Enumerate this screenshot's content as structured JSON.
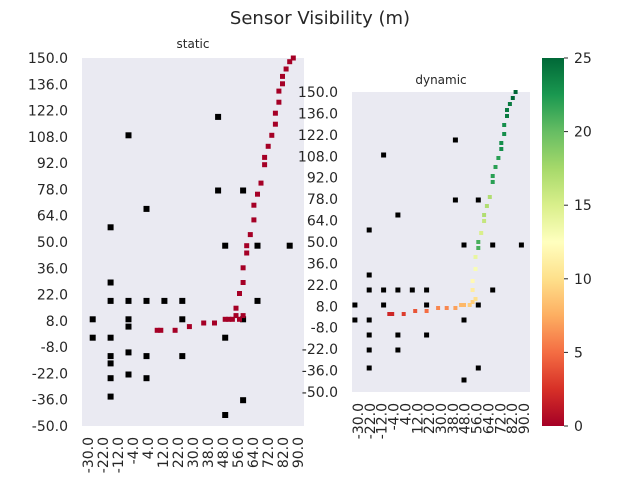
{
  "chart_data": {
    "type": "heatmap",
    "title": "Sensor Visibility (m)",
    "panels": [
      {
        "name": "static",
        "title": "static",
        "x_ticks": [
          "-30.0",
          "-22.0",
          "-12.0",
          "-4.0",
          "4.0",
          "12.0",
          "22.0",
          "30.0",
          "38.0",
          "48.0",
          "56.0",
          "64.0",
          "72.0",
          "82.0",
          "90.0"
        ],
        "y_ticks": [
          "150.0",
          "136.0",
          "122.0",
          "108.0",
          "92.0",
          "78.0",
          "64.0",
          "50.0",
          "36.0",
          "22.0",
          "8.0",
          "-8.0",
          "-22.0",
          "-36.0",
          "-50.0"
        ],
        "xlim": [
          -32,
          92
        ],
        "ylim": [
          -50,
          150
        ],
        "obstacles": [
          [
            -26,
            8
          ],
          [
            -26,
            -2
          ],
          [
            -16,
            -16
          ],
          [
            -6,
            4
          ],
          [
            -6,
            -10
          ],
          [
            -6,
            -22
          ],
          [
            -16,
            58
          ],
          [
            -16,
            28
          ],
          [
            -16,
            18
          ],
          [
            -16,
            -2
          ],
          [
            -16,
            -12
          ],
          [
            -16,
            -24
          ],
          [
            -16,
            -34
          ],
          [
            -6,
            108
          ],
          [
            -6,
            18
          ],
          [
            -6,
            8
          ],
          [
            4,
            68
          ],
          [
            4,
            18
          ],
          [
            4,
            -12
          ],
          [
            4,
            -24
          ],
          [
            14,
            18
          ],
          [
            24,
            18
          ],
          [
            24,
            8
          ],
          [
            24,
            -12
          ],
          [
            44,
            118
          ],
          [
            44,
            78
          ],
          [
            48,
            48
          ],
          [
            48,
            -2
          ],
          [
            48,
            -44
          ],
          [
            58,
            78
          ],
          [
            58,
            8
          ],
          [
            58,
            -36
          ],
          [
            66,
            48
          ],
          [
            66,
            18
          ],
          [
            84,
            48
          ]
        ],
        "trajectory": [
          [
            10,
            2,
            0
          ],
          [
            12,
            2,
            0
          ],
          [
            20,
            2,
            0
          ],
          [
            28,
            4,
            0
          ],
          [
            36,
            6,
            0
          ],
          [
            42,
            6,
            0
          ],
          [
            48,
            8,
            0
          ],
          [
            50,
            8,
            0
          ],
          [
            52,
            8,
            0
          ],
          [
            54,
            10,
            0
          ],
          [
            56,
            8,
            0
          ],
          [
            58,
            10,
            0
          ],
          [
            54,
            14,
            0
          ],
          [
            56,
            22,
            0
          ],
          [
            58,
            28,
            0
          ],
          [
            58,
            36,
            0
          ],
          [
            60,
            44,
            0
          ],
          [
            60,
            48,
            0
          ],
          [
            62,
            54,
            0
          ],
          [
            64,
            62,
            0
          ],
          [
            64,
            70,
            0
          ],
          [
            66,
            76,
            0
          ],
          [
            68,
            82,
            0
          ],
          [
            70,
            92,
            0
          ],
          [
            70,
            96,
            0
          ],
          [
            72,
            102,
            0
          ],
          [
            74,
            108,
            0
          ],
          [
            76,
            114,
            0
          ],
          [
            76,
            120,
            0
          ],
          [
            78,
            126,
            0
          ],
          [
            78,
            132,
            0
          ],
          [
            80,
            136,
            0
          ],
          [
            80,
            140,
            0
          ],
          [
            82,
            144,
            0
          ],
          [
            84,
            148,
            0
          ],
          [
            86,
            150,
            0
          ]
        ]
      },
      {
        "name": "dynamic",
        "title": "dynamic",
        "x_ticks": [
          "-30.0",
          "-22.0",
          "-12.0",
          "-4.0",
          "4.0",
          "12.0",
          "22.0",
          "30.0",
          "38.0",
          "48.0",
          "56.0",
          "64.0",
          "72.0",
          "82.0",
          "90.0"
        ],
        "y_ticks": [
          "150.0",
          "136.0",
          "122.0",
          "108.0",
          "92.0",
          "78.0",
          "64.0",
          "50.0",
          "36.0",
          "22.0",
          "8.0",
          "-8.0",
          "-22.0",
          "-36.0",
          "-50.0"
        ],
        "xlim": [
          -32,
          92
        ],
        "ylim": [
          -50,
          150
        ],
        "obstacles": [
          [
            -30,
            8
          ],
          [
            -30,
            -2
          ],
          [
            -20,
            58
          ],
          [
            -20,
            28
          ],
          [
            -20,
            18
          ],
          [
            -20,
            -2
          ],
          [
            -20,
            -12
          ],
          [
            -20,
            -22
          ],
          [
            -20,
            -34
          ],
          [
            -10,
            108
          ],
          [
            -10,
            18
          ],
          [
            -10,
            8
          ],
          [
            0,
            68
          ],
          [
            0,
            18
          ],
          [
            0,
            -12
          ],
          [
            0,
            -22
          ],
          [
            10,
            18
          ],
          [
            20,
            18
          ],
          [
            20,
            8
          ],
          [
            20,
            -12
          ],
          [
            40,
            118
          ],
          [
            40,
            78
          ],
          [
            46,
            48
          ],
          [
            46,
            -2
          ],
          [
            46,
            -42
          ],
          [
            56,
            78
          ],
          [
            56,
            8
          ],
          [
            56,
            -34
          ],
          [
            66,
            48
          ],
          [
            66,
            18
          ],
          [
            86,
            48
          ]
        ],
        "trajectory": [
          [
            -6,
            2,
            2
          ],
          [
            -4,
            2,
            2
          ],
          [
            4,
            2,
            3
          ],
          [
            12,
            4,
            4
          ],
          [
            20,
            4,
            5
          ],
          [
            28,
            6,
            6
          ],
          [
            34,
            6,
            6
          ],
          [
            40,
            6,
            7
          ],
          [
            44,
            8,
            8
          ],
          [
            46,
            8,
            8
          ],
          [
            50,
            8,
            9
          ],
          [
            52,
            10,
            9
          ],
          [
            54,
            12,
            10
          ],
          [
            52,
            18,
            11
          ],
          [
            52,
            24,
            12
          ],
          [
            54,
            32,
            13
          ],
          [
            54,
            40,
            14
          ],
          [
            56,
            46,
            21
          ],
          [
            56,
            50,
            21
          ],
          [
            58,
            56,
            15
          ],
          [
            60,
            64,
            16
          ],
          [
            60,
            68,
            17
          ],
          [
            62,
            74,
            17
          ],
          [
            64,
            80,
            17
          ],
          [
            66,
            90,
            22
          ],
          [
            66,
            94,
            22
          ],
          [
            68,
            100,
            22
          ],
          [
            70,
            106,
            22
          ],
          [
            72,
            112,
            23
          ],
          [
            72,
            116,
            23
          ],
          [
            74,
            122,
            23
          ],
          [
            74,
            128,
            23
          ],
          [
            76,
            134,
            24
          ],
          [
            76,
            138,
            24
          ],
          [
            78,
            142,
            24
          ],
          [
            80,
            146,
            25
          ],
          [
            82,
            150,
            25
          ]
        ]
      }
    ],
    "colorbar": {
      "colormap": "RdYlGn",
      "min": 0,
      "max": 25,
      "ticks": [
        "0",
        "5",
        "10",
        "15",
        "20",
        "25"
      ],
      "obstacle_color": "#000000"
    }
  }
}
